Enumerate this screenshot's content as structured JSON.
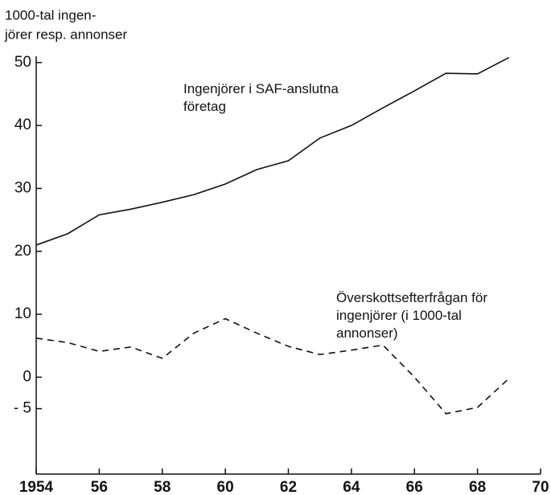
{
  "chart_data": {
    "type": "line",
    "y_axis_label": [
      "1000-tal ingen-",
      "jörer resp. annonser"
    ],
    "x": [
      1954,
      1955,
      1956,
      1957,
      1958,
      1959,
      1960,
      1961,
      1962,
      1963,
      1964,
      1965,
      1966,
      1967,
      1968,
      1969
    ],
    "series": [
      {
        "name": "Ingenjörer i SAF-anslutna företag",
        "color": "#111111",
        "dash": false,
        "values": [
          21,
          22.8,
          25.8,
          26.7,
          27.8,
          29,
          30.7,
          33,
          34.4,
          38,
          40,
          42.8,
          45.5,
          48.3,
          48.2,
          50.8
        ]
      },
      {
        "name": "Överskottsefterfrågan för ingenjörer (i 1000-tal annonser)",
        "color": "#111111",
        "dash": true,
        "values": [
          6.2,
          5.5,
          4.1,
          4.8,
          3.0,
          7,
          9.3,
          7,
          4.9,
          3.6,
          4.3,
          5.1,
          0,
          -5.8,
          -4.8,
          -0.2
        ]
      }
    ],
    "xlim": [
      1954,
      1970
    ],
    "xticks": [
      1954,
      {
        "value": 1956,
        "label": "56"
      },
      {
        "value": 1958,
        "label": "58"
      },
      {
        "value": 1960,
        "label": "60"
      },
      {
        "value": 1962,
        "label": "62"
      },
      {
        "value": 1964,
        "label": "64"
      },
      {
        "value": 1966,
        "label": "66"
      },
      {
        "value": 1968,
        "label": "68"
      },
      {
        "value": 1970,
        "label": "70"
      }
    ],
    "ylim": [
      -15.4,
      51
    ],
    "yticks": [
      50,
      40,
      30,
      20,
      10,
      0,
      {
        "value": -5,
        "label": "- 5"
      }
    ]
  }
}
